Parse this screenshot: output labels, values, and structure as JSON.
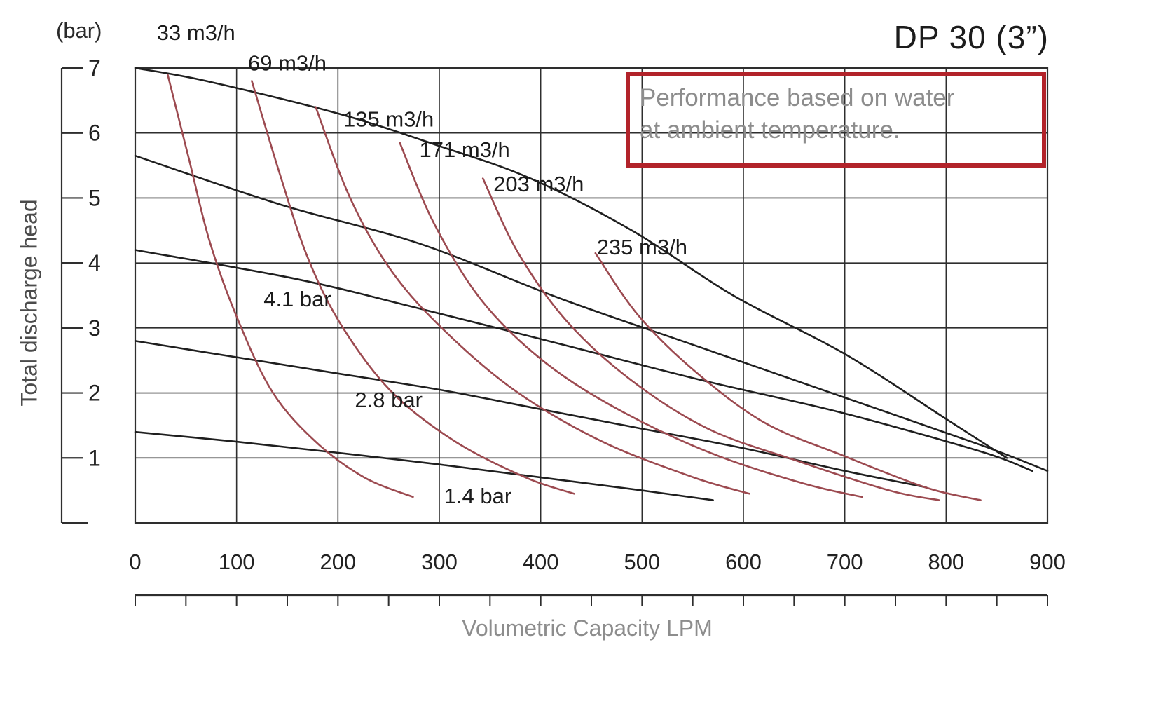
{
  "page_title": "DP 30 (3”)",
  "note": {
    "line1": "Performance based on water",
    "line2": "at ambient temperature."
  },
  "y_axis": {
    "unit": "(bar)",
    "label": "Total discharge head",
    "ticks": [
      7,
      6,
      5,
      4,
      3,
      2,
      1
    ]
  },
  "x_axis": {
    "label": "Volumetric Capacity LPM",
    "ticks": [
      0,
      100,
      200,
      300,
      400,
      500,
      600,
      700,
      800,
      900
    ],
    "minor_tick_step": 50
  },
  "chart_data": {
    "type": "line",
    "title": "DP 30 (3”)",
    "subtitle": "Performance based on water at ambient temperature.",
    "xlabel": "Volumetric Capacity LPM",
    "ylabel": "Total discharge head (bar)",
    "xlim": [
      0,
      900
    ],
    "ylim": [
      0,
      7
    ],
    "grid": true,
    "colors": {
      "pump_curves": "#1f1f1f",
      "air_curves": "#9c4a50",
      "grid": "#2e2e2e",
      "note_border": "#b2232a",
      "muted_text": "#8d8d8d"
    },
    "series": [
      {
        "name": "pump curve (unlabeled, starts 7.0 bar)",
        "group": "pump",
        "points": [
          [
            0,
            7.0
          ],
          [
            70,
            6.8
          ],
          [
            200,
            6.3
          ],
          [
            300,
            5.8
          ],
          [
            390,
            5.3
          ],
          [
            490,
            4.5
          ],
          [
            590,
            3.5
          ],
          [
            700,
            2.6
          ],
          [
            800,
            1.6
          ],
          [
            860,
            1.0
          ]
        ]
      },
      {
        "name": "pump curve (unlabeled, starts 5.6 bar)",
        "group": "pump",
        "points": [
          [
            0,
            5.65
          ],
          [
            143,
            4.9
          ],
          [
            280,
            4.3
          ],
          [
            420,
            3.45
          ],
          [
            558,
            2.7
          ],
          [
            696,
            1.95
          ],
          [
            834,
            1.2
          ],
          [
            900,
            0.8
          ]
        ]
      },
      {
        "name": "4.1 bar",
        "group": "pump",
        "points": [
          [
            0,
            4.2
          ],
          [
            160,
            3.75
          ],
          [
            280,
            3.3
          ],
          [
            420,
            2.75
          ],
          [
            558,
            2.2
          ],
          [
            696,
            1.7
          ],
          [
            834,
            1.1
          ],
          [
            885,
            0.8
          ]
        ]
      },
      {
        "name": "2.8 bar",
        "group": "pump",
        "points": [
          [
            0,
            2.8
          ],
          [
            100,
            2.55
          ],
          [
            200,
            2.3
          ],
          [
            300,
            2.05
          ],
          [
            400,
            1.75
          ],
          [
            500,
            1.45
          ],
          [
            600,
            1.15
          ],
          [
            700,
            0.8
          ],
          [
            780,
            0.55
          ]
        ]
      },
      {
        "name": "1.4 bar",
        "group": "pump",
        "points": [
          [
            0,
            1.4
          ],
          [
            100,
            1.25
          ],
          [
            200,
            1.08
          ],
          [
            300,
            0.9
          ],
          [
            400,
            0.7
          ],
          [
            500,
            0.5
          ],
          [
            570,
            0.35
          ]
        ]
      },
      {
        "name": "33 m3/h",
        "group": "air",
        "points": [
          [
            32,
            6.9
          ],
          [
            53,
            5.6
          ],
          [
            74,
            4.3
          ],
          [
            102,
            3.1
          ],
          [
            136,
            2.0
          ],
          [
            178,
            1.25
          ],
          [
            226,
            0.7
          ],
          [
            274,
            0.4
          ]
        ]
      },
      {
        "name": "69 m3/h",
        "group": "air",
        "points": [
          [
            115,
            6.8
          ],
          [
            143,
            5.35
          ],
          [
            171,
            4.05
          ],
          [
            205,
            3.0
          ],
          [
            254,
            2.0
          ],
          [
            316,
            1.25
          ],
          [
            385,
            0.7
          ],
          [
            433,
            0.45
          ]
        ]
      },
      {
        "name": "135 m3/h",
        "group": "air",
        "points": [
          [
            178,
            6.4
          ],
          [
            212,
            5.0
          ],
          [
            254,
            3.85
          ],
          [
            309,
            2.9
          ],
          [
            378,
            2.0
          ],
          [
            461,
            1.25
          ],
          [
            551,
            0.7
          ],
          [
            606,
            0.45
          ]
        ]
      },
      {
        "name": "171 m3/h",
        "group": "air",
        "points": [
          [
            261,
            5.85
          ],
          [
            295,
            4.6
          ],
          [
            343,
            3.4
          ],
          [
            406,
            2.45
          ],
          [
            482,
            1.7
          ],
          [
            572,
            1.05
          ],
          [
            661,
            0.6
          ],
          [
            717,
            0.4
          ]
        ]
      },
      {
        "name": "203 m3/h",
        "group": "air",
        "points": [
          [
            343,
            5.3
          ],
          [
            378,
            4.15
          ],
          [
            426,
            3.1
          ],
          [
            489,
            2.2
          ],
          [
            565,
            1.45
          ],
          [
            654,
            0.95
          ],
          [
            744,
            0.5
          ],
          [
            793,
            0.35
          ]
        ]
      },
      {
        "name": "235 m3/h",
        "group": "air",
        "points": [
          [
            454,
            4.15
          ],
          [
            496,
            3.2
          ],
          [
            551,
            2.35
          ],
          [
            620,
            1.55
          ],
          [
            696,
            1.05
          ],
          [
            779,
            0.55
          ],
          [
            834,
            0.35
          ]
        ]
      }
    ],
    "annotations": [
      {
        "text": "33 m3/h",
        "x": 60,
        "y": 7.55
      },
      {
        "text": "69 m3/h",
        "x": 150,
        "y": 7.08
      },
      {
        "text": "135 m3/h",
        "x": 250,
        "y": 6.22
      },
      {
        "text": "171 m3/h",
        "x": 325,
        "y": 5.75
      },
      {
        "text": "203 m3/h",
        "x": 398,
        "y": 5.22
      },
      {
        "text": "235 m3/h",
        "x": 500,
        "y": 4.25
      },
      {
        "text": "4.1 bar",
        "x": 160,
        "y": 3.45
      },
      {
        "text": "2.8 bar",
        "x": 250,
        "y": 1.9
      },
      {
        "text": "1.4 bar",
        "x": 338,
        "y": 0.42
      }
    ],
    "legend_position": "none"
  }
}
